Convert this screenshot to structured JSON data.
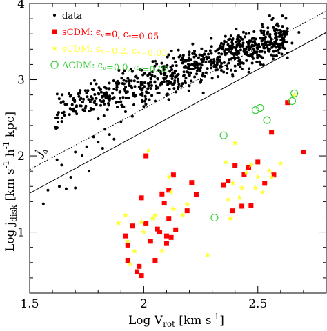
{
  "chart_data": {
    "type": "scatter",
    "xlabel": "Log V",
    "xlabel_sub": "rot",
    "xlabel_units": "[km s",
    "xlabel_units_sup": "-1",
    "xlabel_close": "]",
    "ylabel": "Log j",
    "ylabel_sub": "disk",
    "ylabel_units": "[km s",
    "ylabel_units_sup1": "-1",
    "ylabel_mid": " h",
    "ylabel_units_sup2": "-1",
    "ylabel_close": " kpc]",
    "xlim": [
      1.5,
      2.8
    ],
    "ylim": [
      0.2,
      4.0
    ],
    "xticks": [
      "1.5",
      "2",
      "2.5"
    ],
    "xtick_values": [
      1.5,
      2.0,
      2.5
    ],
    "yticks": [
      "1",
      "2",
      "3",
      "4"
    ],
    "ytick_values": [
      1,
      2,
      3,
      4
    ],
    "annotation": {
      "text": "j",
      "sub": "Δ"
    },
    "lines": [
      {
        "style": "dotted",
        "x": [
          1.5,
          2.8
        ],
        "y": [
          1.82,
          3.9
        ]
      },
      {
        "style": "solid",
        "x": [
          1.5,
          2.8
        ],
        "y": [
          1.51,
          3.62
        ]
      }
    ],
    "legend": [
      {
        "marker": "circle",
        "color": "#000000",
        "text": "data"
      },
      {
        "marker": "square",
        "color": "#ff0000",
        "text": "sCDM: ϵ_v=0, c_*=0.05"
      },
      {
        "marker": "star",
        "color": "#ffff33",
        "text": "sCDM: ϵ_v=0.2, c_*=0.05"
      },
      {
        "marker": "open-circle",
        "color": "#33cc33",
        "text": "ΛCDM: ϵ_v=0.0, c_*=0.05"
      }
    ],
    "series": [
      {
        "name": "sCDM: ϵ_v=0, c_*=0.05",
        "marker": "square",
        "color": "#ff0000",
        "points": [
          [
            1.92,
            0.95
          ],
          [
            1.93,
            0.83
          ],
          [
            1.93,
            0.63
          ],
          [
            1.95,
            1.08
          ],
          [
            1.97,
            0.48
          ],
          [
            1.98,
            0.55
          ],
          [
            1.99,
            0.43
          ],
          [
            1.99,
            1.45
          ],
          [
            2.01,
            2.0
          ],
          [
            2.01,
            1.11
          ],
          [
            2.03,
            0.88
          ],
          [
            2.05,
            0.63
          ],
          [
            2.06,
            1.04
          ],
          [
            2.07,
            1.0
          ],
          [
            2.08,
            1.5
          ],
          [
            2.09,
            1.38
          ],
          [
            2.1,
            0.85
          ],
          [
            2.1,
            0.95
          ],
          [
            2.11,
            1.55
          ],
          [
            2.11,
            1.18
          ],
          [
            2.12,
            0.93
          ],
          [
            2.13,
            1.75
          ],
          [
            2.14,
            1.03
          ],
          [
            2.19,
            1.28
          ],
          [
            2.21,
            1.65
          ],
          [
            2.23,
            1.49
          ],
          [
            2.35,
            1.62
          ],
          [
            2.37,
            1.67
          ],
          [
            2.39,
            1.28
          ],
          [
            2.4,
            1.87
          ],
          [
            2.43,
            1.34
          ],
          [
            2.44,
            1.76
          ],
          [
            2.46,
            1.85
          ],
          [
            2.47,
            1.35
          ],
          [
            2.5,
            1.92
          ],
          [
            2.53,
            1.64
          ],
          [
            2.56,
            2.31
          ],
          [
            2.57,
            1.75
          ],
          [
            2.63,
            2.7
          ],
          [
            2.7,
            2.05
          ]
        ]
      },
      {
        "name": "sCDM: ϵ_v=0.2, c_*=0.05",
        "marker": "star",
        "color": "#ffff33",
        "points": [
          [
            1.89,
            1.12
          ],
          [
            1.92,
            1.22
          ],
          [
            1.93,
            0.88
          ],
          [
            1.94,
            0.58
          ],
          [
            1.96,
            0.75
          ],
          [
            1.99,
            1.13
          ],
          [
            2.0,
            1.0
          ],
          [
            2.02,
            2.07
          ],
          [
            2.04,
            1.18
          ],
          [
            2.05,
            1.22
          ],
          [
            2.08,
            0.75
          ],
          [
            2.11,
            1.72
          ],
          [
            2.12,
            1.52
          ],
          [
            2.13,
            1.3
          ],
          [
            2.17,
            1.22
          ],
          [
            2.19,
            1.36
          ],
          [
            2.28,
            0.7
          ],
          [
            2.36,
            1.92
          ],
          [
            2.37,
            1.43
          ],
          [
            2.38,
            1.18
          ],
          [
            2.39,
            1.64
          ],
          [
            2.4,
            2.17
          ],
          [
            2.42,
            1.45
          ],
          [
            2.43,
            1.58
          ],
          [
            2.45,
            1.78
          ],
          [
            2.47,
            1.88
          ],
          [
            2.49,
            1.58
          ],
          [
            2.5,
            1.72
          ],
          [
            2.52,
            1.52
          ],
          [
            2.55,
            1.8
          ],
          [
            2.56,
            1.72
          ],
          [
            2.6,
            1.9
          ],
          [
            2.66,
            2.8
          ]
        ]
      },
      {
        "name": "ΛCDM: ϵ_v=0.0, c_*=0.05",
        "marker": "open-circle",
        "color": "#33cc33",
        "points": [
          [
            2.31,
            1.19
          ],
          [
            2.35,
            2.27
          ],
          [
            2.49,
            2.6
          ],
          [
            2.51,
            2.63
          ],
          [
            2.54,
            2.47
          ],
          [
            2.65,
            2.72
          ],
          [
            2.66,
            2.82
          ]
        ]
      },
      {
        "name": "data",
        "marker": "circle",
        "color": "#000000",
        "cloud": [
          [
            1.56,
            1.37
          ],
          [
            1.58,
            1.55
          ],
          [
            1.62,
            1.95
          ],
          [
            1.63,
            1.6
          ],
          [
            1.64,
            1.88
          ],
          [
            1.66,
            1.57
          ],
          [
            1.68,
            1.72
          ],
          [
            1.7,
            2.05
          ],
          [
            1.7,
            1.58
          ],
          [
            1.73,
            2.0
          ],
          [
            1.75,
            2.12
          ],
          [
            1.76,
            1.8
          ],
          [
            1.78,
            2.25
          ],
          [
            1.8,
            2.18
          ],
          [
            1.82,
            2.1
          ],
          [
            1.83,
            2.35
          ],
          [
            1.85,
            2.28
          ],
          [
            1.87,
            2.22
          ],
          [
            1.9,
            2.45
          ],
          [
            1.92,
            2.58
          ],
          [
            1.95,
            2.52
          ],
          [
            2.0,
            2.65
          ],
          [
            2.05,
            2.72
          ],
          [
            2.1,
            2.8
          ],
          [
            2.15,
            2.88
          ],
          [
            2.2,
            2.92
          ],
          [
            2.25,
            2.97
          ],
          [
            2.3,
            3.02
          ],
          [
            2.35,
            3.1
          ],
          [
            2.4,
            3.18
          ],
          [
            2.45,
            3.25
          ],
          [
            2.5,
            3.3
          ],
          [
            2.55,
            3.37
          ],
          [
            2.6,
            3.42
          ],
          [
            2.65,
            3.48
          ],
          [
            2.68,
            3.62
          ]
        ]
      }
    ]
  }
}
